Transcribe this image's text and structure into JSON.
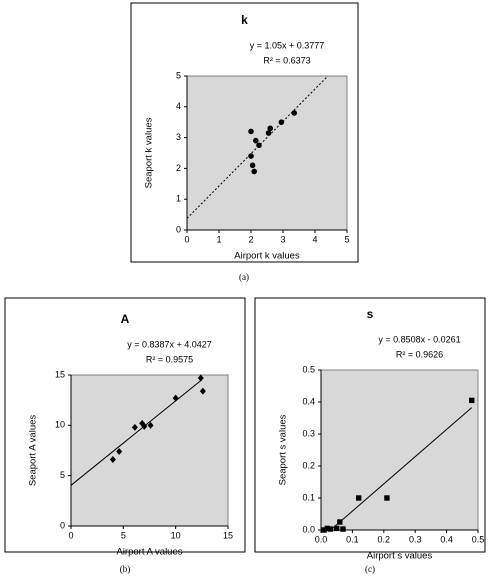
{
  "chart_data": [
    {
      "type": "scatter",
      "title": "k",
      "caption": "(a)",
      "equation": "y = 1.05x + 0.3777",
      "r2": "R² = 0.6373",
      "x_label": "Airport k values",
      "y_label": "Seaport k values",
      "marker": "circle",
      "color": "#000000",
      "x": [
        2,
        2,
        2.05,
        2.1,
        2.15,
        2.25,
        2.55,
        2.6,
        2.95,
        3.35
      ],
      "values": [
        3.2,
        2.4,
        2.1,
        1.9,
        2.9,
        2.75,
        3.15,
        3.3,
        3.5,
        3.8
      ],
      "trendline": {
        "slope": 1.05,
        "intercept": 0.3777,
        "x": [
          0,
          4.4
        ],
        "style": "dotted"
      },
      "xlim": [
        0,
        5
      ],
      "ylim": [
        0,
        5
      ],
      "xticks": [
        0,
        1,
        2,
        3,
        4,
        5
      ],
      "yticks": [
        0,
        1,
        2,
        3,
        4,
        5
      ],
      "background": "#d8d8d8"
    },
    {
      "type": "scatter",
      "title": "A",
      "caption": "(b)",
      "equation": "y = 0.8387x + 4.0427",
      "r2": "R² = 0.9575",
      "x_label": "Airport A values",
      "y_label": "Seaport A values",
      "marker": "diamond",
      "color": "#000000",
      "x": [
        4,
        4.6,
        6.1,
        6.8,
        7,
        7.6,
        10,
        12.4,
        12.6
      ],
      "values": [
        6.6,
        7.4,
        9.8,
        10.2,
        9.9,
        10,
        12.7,
        14.7,
        13.4
      ],
      "trendline": {
        "slope": 0.8387,
        "intercept": 4.0427,
        "x": [
          0,
          12.5
        ],
        "style": "solid"
      },
      "xlim": [
        0,
        15
      ],
      "ylim": [
        0,
        15
      ],
      "xticks": [
        0,
        5,
        10,
        15
      ],
      "yticks": [
        0,
        5,
        10,
        15
      ],
      "background": "#d8d8d8"
    },
    {
      "type": "scatter",
      "title": "s",
      "caption": "(c)",
      "equation": "y = 0.8508x - 0.0261",
      "r2": "R² = 0.9626",
      "x_label": "Airport s values",
      "y_label": "Seaport s values",
      "marker": "square",
      "color": "#000000",
      "x": [
        0.01,
        0.02,
        0.03,
        0.05,
        0.06,
        0.07,
        0.12,
        0.21,
        0.48
      ],
      "values": [
        0,
        0.005,
        0.003,
        0.005,
        0.025,
        0.003,
        0.1,
        0.1,
        0.405
      ],
      "trendline": {
        "slope": 0.8508,
        "intercept": -0.0261,
        "x": [
          0.03,
          0.48
        ],
        "style": "solid"
      },
      "xlim": [
        0,
        0.5
      ],
      "ylim": [
        0,
        0.5
      ],
      "xticks": [
        {
          "value": 0,
          "label": "0.0"
        },
        0.1,
        0.2,
        0.3,
        0.4,
        0.5
      ],
      "yticks": [
        {
          "value": 0,
          "label": "0.0"
        },
        0.1,
        0.2,
        0.3,
        0.4,
        0.5
      ],
      "background": "#d8d8d8"
    }
  ]
}
